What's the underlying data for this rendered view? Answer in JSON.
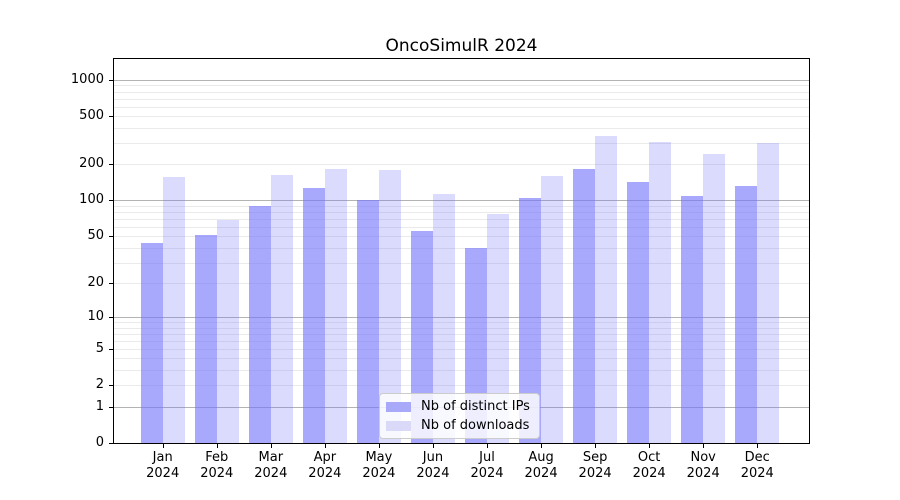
{
  "chart_data": {
    "type": "bar",
    "title": "OncoSimulR 2024",
    "categories": [
      "Jan 2024",
      "Feb 2024",
      "Mar 2024",
      "Apr 2024",
      "May 2024",
      "Jun 2024",
      "Jul 2024",
      "Aug 2024",
      "Sep 2024",
      "Oct 2024",
      "Nov 2024",
      "Dec 2024"
    ],
    "series": [
      {
        "name": "Nb of distinct IPs",
        "values": [
          44,
          51,
          90,
          128,
          100,
          55,
          40,
          104,
          184,
          143,
          108,
          133
        ],
        "bar_color": "rgba(114,114,252,0.62)",
        "swatch_color": "#a9a9fa"
      },
      {
        "name": "Nb of downloads",
        "values": [
          158,
          69,
          164,
          183,
          179,
          114,
          77,
          159,
          341,
          308,
          243,
          298
        ],
        "bar_color": "rgba(114,114,252,0.26)",
        "swatch_color": "#dadaf8"
      }
    ],
    "yscale": "log1p",
    "yticks": [
      0,
      1,
      2,
      5,
      10,
      20,
      50,
      100,
      200,
      500,
      1000
    ],
    "ylim": [
      0,
      1520
    ],
    "grid": true,
    "legend_position": "lower-center",
    "colors": {
      "grid_major": "#b3b3b3",
      "grid_minor": "#eaeaea",
      "axis": "#000000",
      "text": "#000000"
    }
  }
}
